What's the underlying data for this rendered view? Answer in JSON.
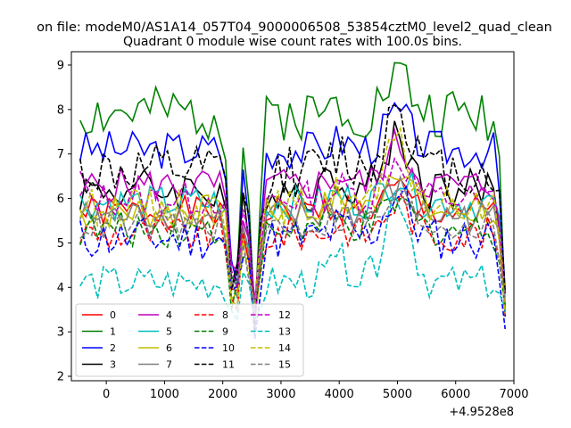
{
  "figure": {
    "suptitle": "on file: modeM0/AS1A14_057T04_9000006508_53854cztM0_level2_quad_clean",
    "title": "Quadrant 0 module wise count rates with 100.0s bins."
  },
  "chart_data": {
    "type": "line",
    "title": "Quadrant 0 module wise count rates with 100.0s bins.",
    "xlabel": "",
    "ylabel": "",
    "x_offset_label": "+4.9528e8",
    "xlim": [
      -600,
      7000
    ],
    "ylim": [
      1.9,
      9.3
    ],
    "x_ticks": [
      0,
      1000,
      2000,
      3000,
      4000,
      5000,
      6000,
      7000
    ],
    "x_tick_labels": [
      "0",
      "1000",
      "2000",
      "3000",
      "4000",
      "5000",
      "6000",
      "7000"
    ],
    "y_ticks": [
      2,
      3,
      4,
      5,
      6,
      7,
      8,
      9
    ],
    "y_tick_labels": [
      "2",
      "3",
      "4",
      "5",
      "6",
      "7",
      "8",
      "9"
    ],
    "grid": false,
    "legend_position": "lower-left",
    "legend_columns": 4,
    "x_range": [
      -450,
      6850
    ],
    "dip_centers": [
      2200,
      2550,
      6850
    ],
    "series": [
      {
        "name": "0",
        "color": "#ff0000",
        "dash": "solid",
        "base": 5.7,
        "amp": 0.5,
        "noise": 0.18,
        "seed": 1
      },
      {
        "name": "1",
        "color": "#008000",
        "dash": "solid",
        "base": 7.9,
        "amp": 0.9,
        "noise": 0.3,
        "seed": 2
      },
      {
        "name": "2",
        "color": "#0000ff",
        "dash": "solid",
        "base": 7.1,
        "amp": 0.8,
        "noise": 0.22,
        "seed": 3
      },
      {
        "name": "3",
        "color": "#000000",
        "dash": "solid",
        "base": 6.2,
        "amp": 1.2,
        "noise": 0.25,
        "seed": 4
      },
      {
        "name": "4",
        "color": "#bf00bf",
        "dash": "solid",
        "base": 6.3,
        "amp": 0.9,
        "noise": 0.2,
        "seed": 5
      },
      {
        "name": "5",
        "color": "#00bfbf",
        "dash": "solid",
        "base": 5.9,
        "amp": 0.6,
        "noise": 0.2,
        "seed": 6
      },
      {
        "name": "6",
        "color": "#bfbf00",
        "dash": "solid",
        "base": 5.7,
        "amp": 1.1,
        "noise": 0.2,
        "seed": 7
      },
      {
        "name": "7",
        "color": "#808080",
        "dash": "solid",
        "base": 5.6,
        "amp": 0.6,
        "noise": 0.18,
        "seed": 8
      },
      {
        "name": "8",
        "color": "#ff0000",
        "dash": "dashed",
        "base": 5.2,
        "amp": 0.7,
        "noise": 0.2,
        "seed": 9
      },
      {
        "name": "9",
        "color": "#008000",
        "dash": "dashed",
        "base": 5.3,
        "amp": 0.6,
        "noise": 0.2,
        "seed": 10
      },
      {
        "name": "10",
        "color": "#0000ff",
        "dash": "dashed",
        "base": 5.1,
        "amp": 1.0,
        "noise": 0.25,
        "seed": 11
      },
      {
        "name": "11",
        "color": "#000000",
        "dash": "dashed",
        "base": 6.6,
        "amp": 1.6,
        "noise": 0.3,
        "seed": 12
      },
      {
        "name": "12",
        "color": "#bf00bf",
        "dash": "dashed",
        "base": 6.0,
        "amp": 0.9,
        "noise": 0.2,
        "seed": 13
      },
      {
        "name": "13",
        "color": "#00bfbf",
        "dash": "dashed",
        "base": 4.1,
        "amp": 2.0,
        "noise": 0.2,
        "seed": 14
      },
      {
        "name": "14",
        "color": "#bfbf00",
        "dash": "dashed",
        "base": 5.8,
        "amp": 1.4,
        "noise": 0.22,
        "seed": 15
      },
      {
        "name": "15",
        "color": "#808080",
        "dash": "dashed",
        "base": 5.4,
        "amp": 0.6,
        "noise": 0.18,
        "seed": 16
      }
    ]
  }
}
